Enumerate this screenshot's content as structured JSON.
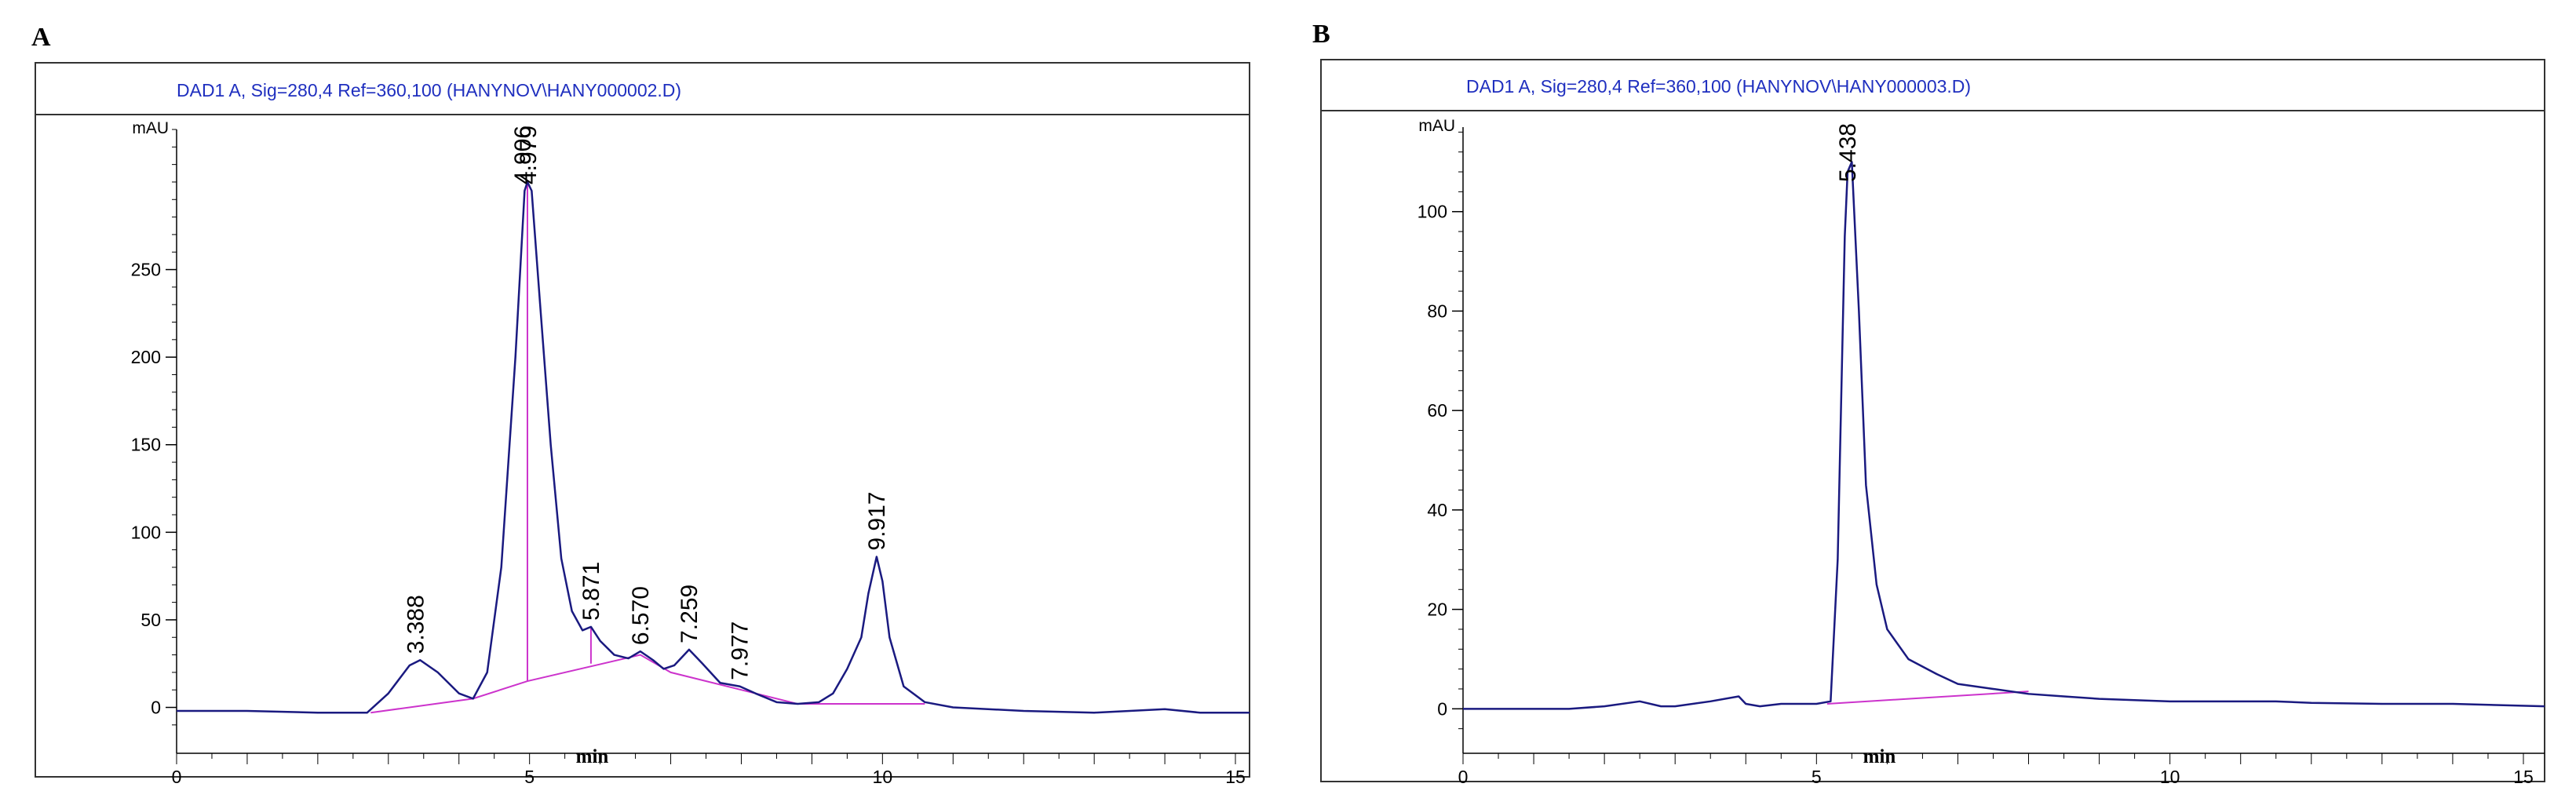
{
  "colors": {
    "trace": "#1a1a80",
    "baseline": "#cc33cc",
    "header_text": "#1f2fbf",
    "frame": "#333333",
    "header_bg": "#ffffff"
  },
  "chart_data": [
    {
      "type": "line",
      "panel_label": "A",
      "title": "DAD1 A, Sig=280,4 Ref=360,100 (HANYNOV\\HANY000002.D)",
      "ylabel": "mAU",
      "xlabel": "min",
      "xlim": [
        0,
        15.2
      ],
      "ylim": [
        -15,
        330
      ],
      "xticks": [
        0,
        5,
        10,
        15
      ],
      "yticks": [
        0,
        50,
        100,
        150,
        200,
        250
      ],
      "grid": false,
      "series": [
        {
          "points": [
            [
              0,
              -2
            ],
            [
              1,
              -2
            ],
            [
              2,
              -3
            ],
            [
              2.7,
              -3
            ],
            [
              3.0,
              8
            ],
            [
              3.3,
              24
            ],
            [
              3.45,
              27
            ],
            [
              3.7,
              20
            ],
            [
              4.0,
              8
            ],
            [
              4.2,
              5
            ],
            [
              4.4,
              20
            ],
            [
              4.6,
              80
            ],
            [
              4.8,
              200
            ],
            [
              4.93,
              295
            ],
            [
              4.97,
              300
            ],
            [
              5.03,
              295
            ],
            [
              5.15,
              230
            ],
            [
              5.3,
              150
            ],
            [
              5.45,
              85
            ],
            [
              5.6,
              55
            ],
            [
              5.75,
              44
            ],
            [
              5.87,
              46
            ],
            [
              6.0,
              38
            ],
            [
              6.2,
              30
            ],
            [
              6.4,
              28
            ],
            [
              6.57,
              32
            ],
            [
              6.75,
              27
            ],
            [
              6.9,
              22
            ],
            [
              7.05,
              24
            ],
            [
              7.26,
              33
            ],
            [
              7.45,
              25
            ],
            [
              7.7,
              14
            ],
            [
              7.98,
              12
            ],
            [
              8.2,
              8
            ],
            [
              8.5,
              3
            ],
            [
              8.8,
              2
            ],
            [
              9.1,
              3
            ],
            [
              9.3,
              8
            ],
            [
              9.5,
              22
            ],
            [
              9.7,
              40
            ],
            [
              9.8,
              65
            ],
            [
              9.917,
              86
            ],
            [
              10.0,
              72
            ],
            [
              10.1,
              40
            ],
            [
              10.3,
              12
            ],
            [
              10.6,
              3
            ],
            [
              11,
              0
            ],
            [
              12,
              -2
            ],
            [
              13,
              -3
            ],
            [
              14,
              -1
            ],
            [
              14.5,
              -3
            ],
            [
              15.2,
              -3
            ]
          ]
        }
      ],
      "baselines": [
        [
          [
            2.75,
            -3
          ],
          [
            4.2,
            5
          ],
          [
            4.97,
            15
          ],
          [
            6.57,
            30
          ],
          [
            7.0,
            20
          ],
          [
            8.0,
            10
          ],
          [
            8.8,
            2
          ],
          [
            9.3,
            2
          ],
          [
            10.6,
            2
          ]
        ]
      ],
      "drop_lines": [
        {
          "x": 4.97,
          "y_from": 15,
          "y_to": 300
        },
        {
          "x": 5.87,
          "y_from": 25,
          "y_to": 46
        }
      ],
      "peak_labels": [
        {
          "x": 3.388,
          "y": 27,
          "text": "3.388"
        },
        {
          "x": 4.906,
          "y": 300,
          "text": "4.906"
        },
        {
          "x": 4.979,
          "y": 300,
          "text": "4.979"
        },
        {
          "x": 5.871,
          "y": 46,
          "text": "5.871"
        },
        {
          "x": 6.57,
          "y": 32,
          "text": "6.570"
        },
        {
          "x": 7.259,
          "y": 33,
          "text": "7.259"
        },
        {
          "x": 7.977,
          "y": 12,
          "text": "7.977"
        },
        {
          "x": 9.917,
          "y": 86,
          "text": "9.917"
        }
      ]
    },
    {
      "type": "line",
      "panel_label": "B",
      "title": "DAD1 A, Sig=280,4 Ref=360,100 (HANYNOV\\HANY000003.D)",
      "ylabel": "mAU",
      "xlabel": "min",
      "xlim": [
        0,
        15.3
      ],
      "ylim": [
        -5,
        117
      ],
      "xticks": [
        0,
        5,
        10,
        15
      ],
      "yticks": [
        0,
        20,
        40,
        60,
        80,
        100
      ],
      "grid": false,
      "series": [
        {
          "points": [
            [
              0,
              0
            ],
            [
              1,
              0
            ],
            [
              1.5,
              0
            ],
            [
              2.0,
              0.5
            ],
            [
              2.5,
              1.5
            ],
            [
              2.8,
              0.5
            ],
            [
              3.0,
              0.5
            ],
            [
              3.5,
              1.5
            ],
            [
              3.9,
              2.5
            ],
            [
              4.0,
              1
            ],
            [
              4.2,
              0.5
            ],
            [
              4.5,
              1
            ],
            [
              5.0,
              1
            ],
            [
              5.2,
              1.5
            ],
            [
              5.3,
              30
            ],
            [
              5.4,
              95
            ],
            [
              5.44,
              108
            ],
            [
              5.5,
              110
            ],
            [
              5.6,
              80
            ],
            [
              5.7,
              45
            ],
            [
              5.85,
              25
            ],
            [
              6.0,
              16
            ],
            [
              6.3,
              10
            ],
            [
              6.7,
              7
            ],
            [
              7.0,
              5
            ],
            [
              7.5,
              4
            ],
            [
              8.0,
              3
            ],
            [
              8.5,
              2.5
            ],
            [
              9,
              2
            ],
            [
              10,
              1.5
            ],
            [
              11,
              1.5
            ],
            [
              11.5,
              1.5
            ],
            [
              12,
              1.2
            ],
            [
              13,
              1
            ],
            [
              14,
              1
            ],
            [
              15.3,
              0.5
            ]
          ]
        }
      ],
      "baselines": [
        [
          [
            5.15,
            1
          ],
          [
            8.0,
            3.5
          ]
        ]
      ],
      "drop_lines": [],
      "peak_labels": [
        {
          "x": 5.438,
          "y": 110,
          "text": "5.438"
        }
      ]
    }
  ]
}
